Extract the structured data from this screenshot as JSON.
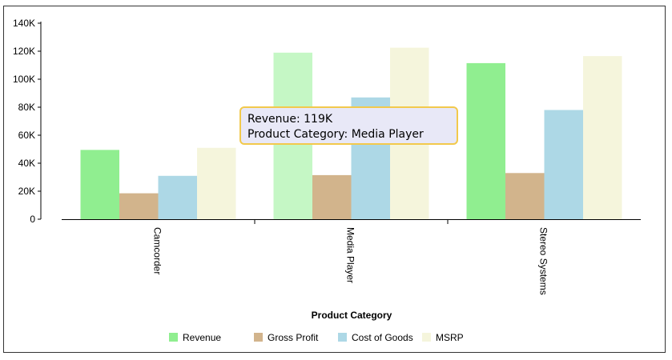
{
  "chart_data": {
    "type": "bar",
    "title": "",
    "xlabel": "Product Category",
    "ylabel": "",
    "categories": [
      "Camcorder",
      "Media Player",
      "Stereo Systems"
    ],
    "series": [
      {
        "name": "Revenue",
        "values": [
          49500,
          119000,
          111500
        ],
        "color": "#90ee90"
      },
      {
        "name": "Gross Profit",
        "values": [
          18500,
          31500,
          33000
        ],
        "color": "#d2b48c"
      },
      {
        "name": "Cost of Goods",
        "values": [
          31000,
          87000,
          78000
        ],
        "color": "#add8e6"
      },
      {
        "name": "MSRP",
        "values": [
          51000,
          122500,
          116500
        ],
        "color": "#f5f5dc"
      }
    ],
    "ylim": [
      0,
      140000
    ],
    "yticks": [
      0,
      20000,
      40000,
      60000,
      80000,
      100000,
      120000,
      140000
    ],
    "ytick_labels": [
      "0",
      "20K",
      "40K",
      "60K",
      "80K",
      "100K",
      "120K",
      "140K"
    ],
    "legend_position": "bottom",
    "grid": false,
    "highlighted": {
      "series": "Revenue",
      "category": "Media Player",
      "color": "#c5f7c5"
    }
  },
  "tooltip": {
    "line1": "Revenue: 119K",
    "line2": "Product Category: Media Player"
  }
}
